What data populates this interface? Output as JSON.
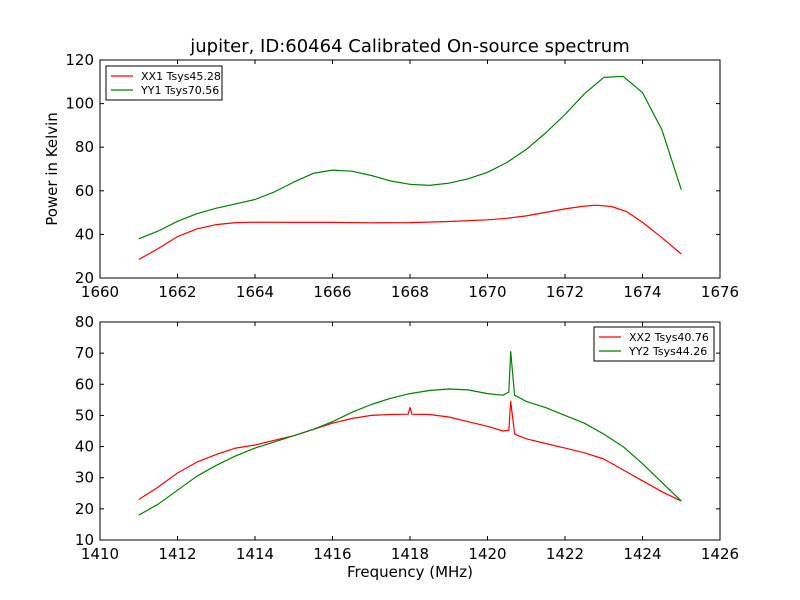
{
  "chart_data": [
    {
      "type": "line",
      "title": "jupiter, ID:60464 Calibrated On-source spectrum",
      "xlabel": "",
      "ylabel": "Power in Kelvin",
      "xlim": [
        1660,
        1676
      ],
      "ylim": [
        20,
        120
      ],
      "xticks": [
        "1660",
        "1662",
        "1664",
        "1666",
        "1668",
        "1670",
        "1672",
        "1674",
        "1676"
      ],
      "yticks": [
        "20",
        "40",
        "60",
        "80",
        "100",
        "120"
      ],
      "grid": false,
      "legend_position": "top-left",
      "series": [
        {
          "name": "XX1 Tsys45.28",
          "color": "#ff0000",
          "x": [
            1661.0,
            1661.5,
            1662.0,
            1662.5,
            1663.0,
            1663.5,
            1664.0,
            1665.0,
            1666.0,
            1667.0,
            1668.0,
            1669.0,
            1670.0,
            1670.5,
            1671.0,
            1671.5,
            1672.0,
            1672.5,
            1672.8,
            1673.2,
            1673.6,
            1674.0,
            1674.5,
            1675.0
          ],
          "y": [
            28.5,
            33.5,
            39.0,
            42.5,
            44.5,
            45.4,
            45.6,
            45.5,
            45.5,
            45.3,
            45.4,
            45.9,
            46.7,
            47.4,
            48.5,
            50.1,
            51.7,
            53.0,
            53.4,
            52.8,
            50.4,
            45.5,
            38.5,
            31.0
          ]
        },
        {
          "name": "YY1 Tsys70.56",
          "color": "#008000",
          "x": [
            1661.0,
            1661.5,
            1662.0,
            1662.5,
            1663.0,
            1663.5,
            1664.0,
            1664.5,
            1665.0,
            1665.5,
            1666.0,
            1666.5,
            1667.0,
            1667.5,
            1668.0,
            1668.5,
            1669.0,
            1669.5,
            1670.0,
            1670.5,
            1671.0,
            1671.5,
            1672.0,
            1672.5,
            1673.0,
            1673.5,
            1674.0,
            1674.5,
            1675.0
          ],
          "y": [
            38.0,
            41.5,
            46.0,
            49.5,
            52.0,
            54.0,
            56.0,
            59.5,
            64.0,
            68.0,
            69.5,
            69.0,
            67.0,
            64.5,
            63.0,
            62.5,
            63.5,
            65.5,
            68.5,
            73.0,
            79.0,
            86.5,
            95.0,
            104.5,
            112.0,
            112.5,
            105.0,
            88.0,
            60.5
          ]
        }
      ]
    },
    {
      "type": "line",
      "title": "",
      "xlabel": "Frequency (MHz)",
      "ylabel": "",
      "xlim": [
        1410,
        1426
      ],
      "ylim": [
        10,
        80
      ],
      "xticks": [
        "1410",
        "1412",
        "1414",
        "1416",
        "1418",
        "1420",
        "1422",
        "1424",
        "1426"
      ],
      "yticks": [
        "10",
        "20",
        "30",
        "40",
        "50",
        "60",
        "70",
        "80"
      ],
      "grid": false,
      "legend_position": "top-right",
      "series": [
        {
          "name": "XX2 Tsys40.76",
          "color": "#ff0000",
          "x": [
            1411.0,
            1411.5,
            1412.0,
            1412.5,
            1413.0,
            1413.5,
            1414.0,
            1414.5,
            1415.0,
            1415.5,
            1416.0,
            1416.5,
            1417.0,
            1417.5,
            1417.95,
            1418.0,
            1418.05,
            1418.5,
            1419.0,
            1419.5,
            1420.0,
            1420.4,
            1420.55,
            1420.6,
            1420.7,
            1421.0,
            1421.5,
            1422.0,
            1422.5,
            1423.0,
            1423.5,
            1424.0,
            1424.5,
            1425.0
          ],
          "y": [
            23.0,
            27.0,
            31.5,
            35.0,
            37.5,
            39.5,
            40.5,
            42.0,
            43.5,
            45.5,
            47.5,
            49.0,
            50.0,
            50.3,
            50.4,
            52.5,
            50.4,
            50.3,
            49.5,
            48.0,
            46.5,
            45.0,
            45.2,
            54.5,
            44.0,
            42.5,
            41.0,
            39.5,
            38.0,
            36.0,
            32.5,
            29.0,
            25.5,
            22.5
          ]
        },
        {
          "name": "YY2 Tsys44.26",
          "color": "#008000",
          "x": [
            1411.0,
            1411.5,
            1412.0,
            1412.5,
            1413.0,
            1413.5,
            1414.0,
            1414.5,
            1415.0,
            1415.5,
            1416.0,
            1416.5,
            1417.0,
            1417.5,
            1418.0,
            1418.5,
            1419.0,
            1419.5,
            1420.0,
            1420.4,
            1420.55,
            1420.6,
            1420.7,
            1421.0,
            1421.5,
            1422.0,
            1422.5,
            1423.0,
            1423.5,
            1424.0,
            1424.5,
            1425.0
          ],
          "y": [
            18.0,
            21.5,
            26.0,
            30.5,
            34.0,
            37.0,
            39.5,
            41.5,
            43.5,
            45.5,
            48.0,
            51.0,
            53.5,
            55.5,
            57.0,
            58.0,
            58.5,
            58.2,
            57.0,
            56.5,
            57.5,
            70.5,
            56.5,
            54.5,
            52.5,
            50.0,
            47.5,
            44.0,
            40.0,
            34.5,
            28.5,
            22.5
          ]
        }
      ]
    }
  ]
}
